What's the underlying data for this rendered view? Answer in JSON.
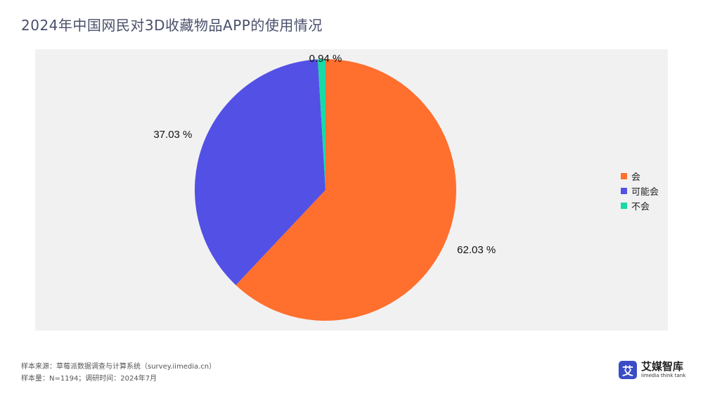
{
  "title": "2024年中国网民对3D收藏物品APP的使用情况",
  "chart_data": {
    "type": "pie",
    "categories": [
      "会",
      "可能会",
      "不会"
    ],
    "values": [
      62.03,
      37.03,
      0.94
    ],
    "value_labels": [
      "62.03 %",
      "37.03 %",
      "0.94 %"
    ],
    "colors": [
      "#ff6f2e",
      "#5350e6",
      "#19d9a4"
    ],
    "legend_position": "right",
    "start_angle": "top",
    "direction": "clockwise"
  },
  "footer": {
    "line1": "样本来源：草莓派数据调查与计算系统（survey.iimedia.cn）",
    "line2": "样本量：N=1194；调研时间：2024年7月"
  },
  "brand": {
    "logo_glyph": "艾",
    "name": "艾媒智库",
    "tagline": "iimedia think tank"
  }
}
